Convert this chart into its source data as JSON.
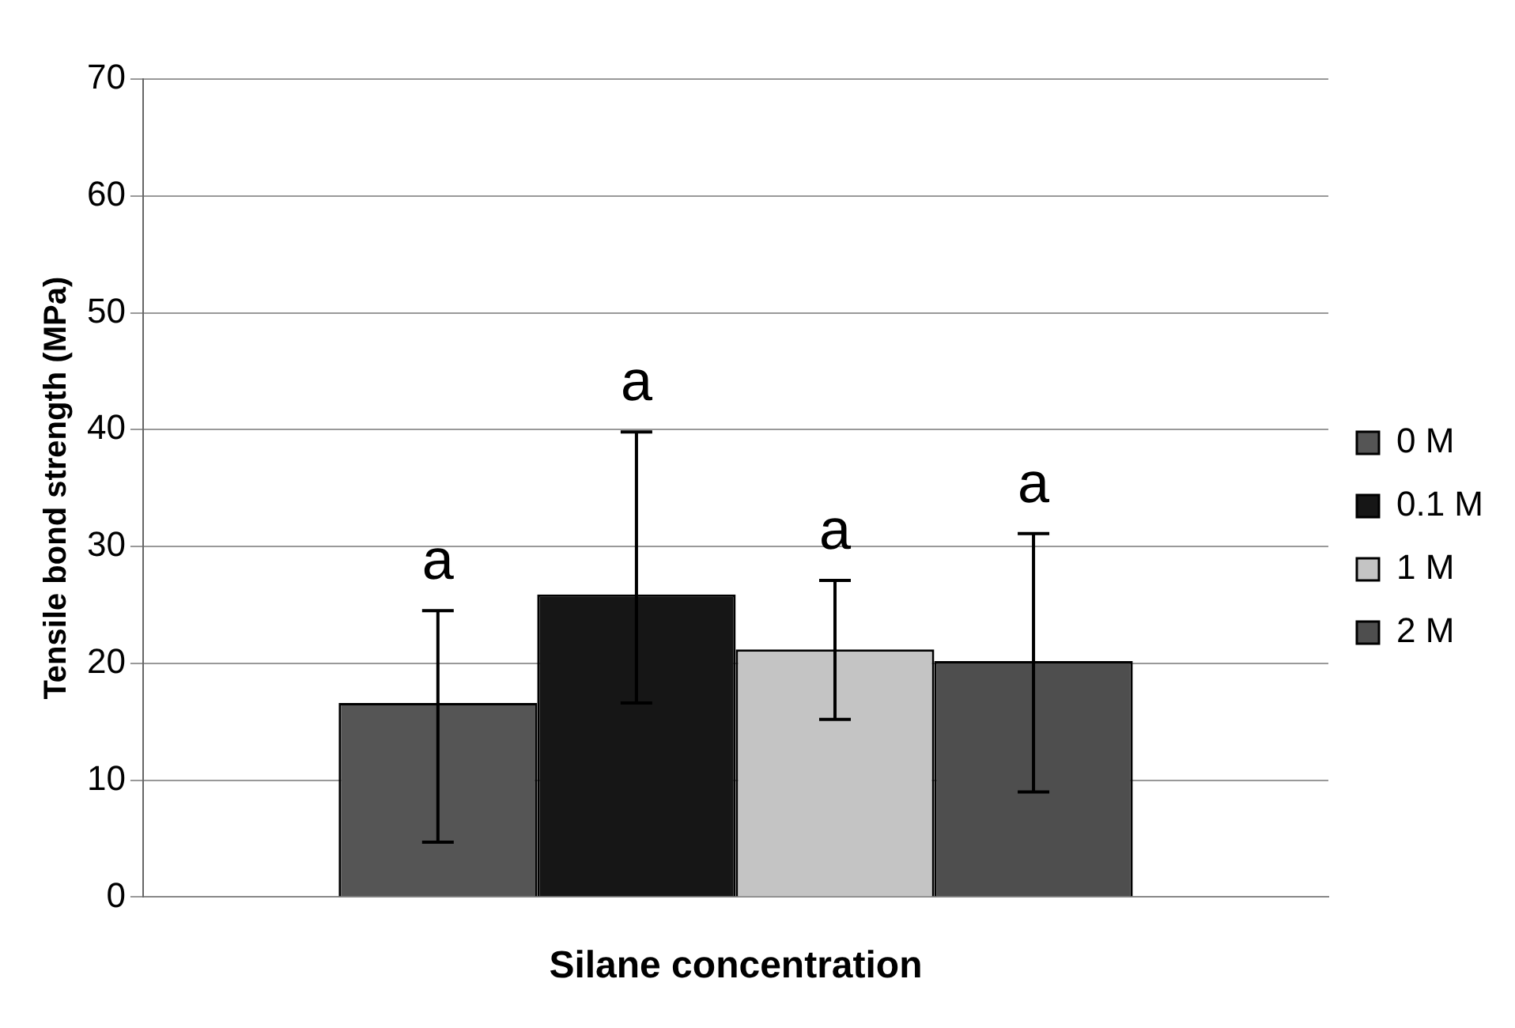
{
  "chart_data": {
    "type": "bar",
    "xlabel": "Silane concentration",
    "ylabel": "Tensile bond strength (MPa)",
    "categories": [
      null
    ],
    "series": [
      {
        "name": "0 M",
        "color": "#555555",
        "values": [
          16.6
        ],
        "errors": [
          [
            4.7,
            24.5
          ]
        ]
      },
      {
        "name": "0.1 M",
        "color": "#161616",
        "values": [
          25.9
        ],
        "errors": [
          [
            16.6,
            39.8
          ]
        ]
      },
      {
        "name": "1 M",
        "color": "#c4c4c4",
        "values": [
          21.2
        ],
        "errors": [
          [
            15.2,
            27.1
          ]
        ]
      },
      {
        "name": "2 M",
        "color": "#4e4e4e",
        "values": [
          20.2
        ],
        "errors": [
          [
            9.0,
            31.1
          ]
        ]
      }
    ],
    "annotations": [
      "a",
      "a",
      "a",
      "a"
    ],
    "ylim": [
      0,
      70
    ],
    "yticks": [
      0,
      10,
      20,
      30,
      40,
      50,
      60,
      70
    ],
    "grid": "y",
    "legend": "right"
  }
}
